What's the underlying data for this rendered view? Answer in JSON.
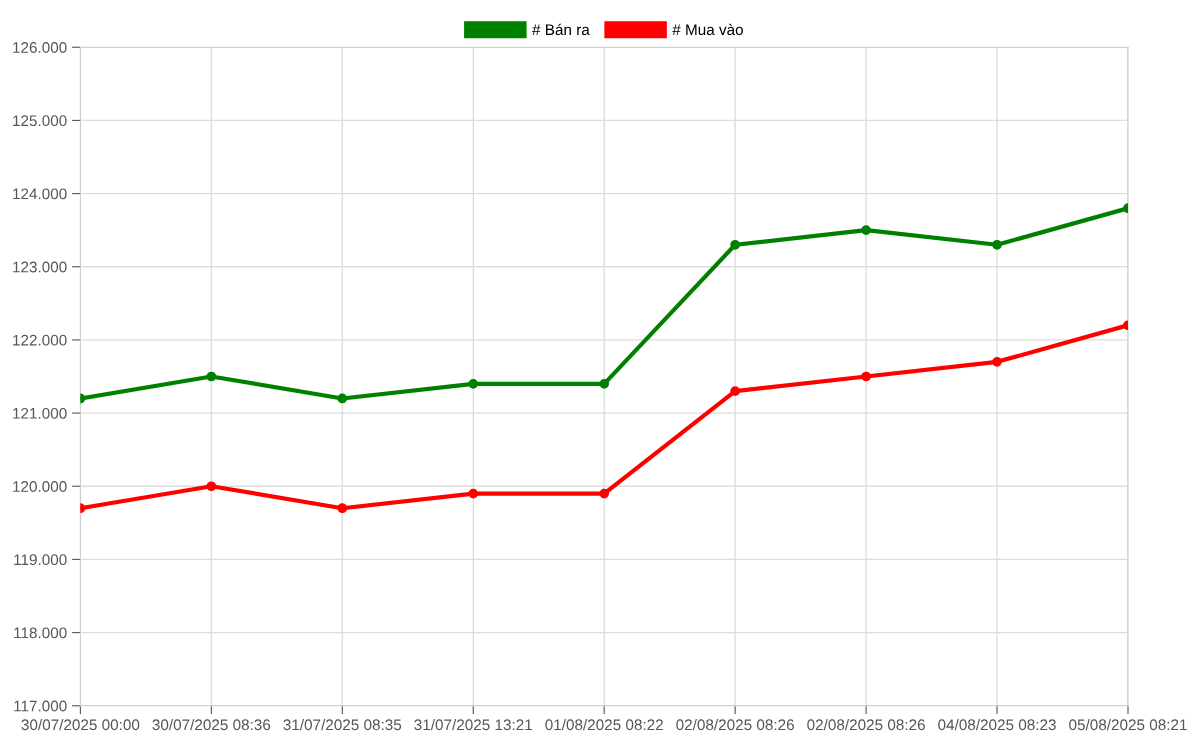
{
  "chart_data": {
    "type": "line",
    "categories": [
      "30/07/2025 00:00",
      "30/07/2025 08:36",
      "31/07/2025 08:35",
      "31/07/2025 13:21",
      "01/08/2025 08:22",
      "02/08/2025 08:26",
      "02/08/2025 08:26",
      "04/08/2025 08:23",
      "05/08/2025 08:21"
    ],
    "series": [
      {
        "name": "# Bán ra",
        "color": "#008000",
        "values": [
          121200,
          121500,
          121200,
          121400,
          121400,
          123300,
          123500,
          123300,
          123800
        ]
      },
      {
        "name": "# Mua vào",
        "color": "#ff0000",
        "values": [
          119700,
          120000,
          119700,
          119900,
          119900,
          121300,
          121500,
          121700,
          122200
        ]
      }
    ],
    "ylim": [
      117000,
      126000
    ],
    "yticks": [
      {
        "value": 117000,
        "label": "117.000"
      },
      {
        "value": 118000,
        "label": "118.000"
      },
      {
        "value": 119000,
        "label": "119.000"
      },
      {
        "value": 120000,
        "label": "120.000"
      },
      {
        "value": 121000,
        "label": "121.000"
      },
      {
        "value": 122000,
        "label": "122.000"
      },
      {
        "value": 123000,
        "label": "123.000"
      },
      {
        "value": 124000,
        "label": "124.000"
      },
      {
        "value": 125000,
        "label": "125.000"
      },
      {
        "value": 126000,
        "label": "126.000"
      }
    ],
    "grid": true,
    "legend": "top",
    "marker": "circle",
    "line_style": "solid"
  }
}
